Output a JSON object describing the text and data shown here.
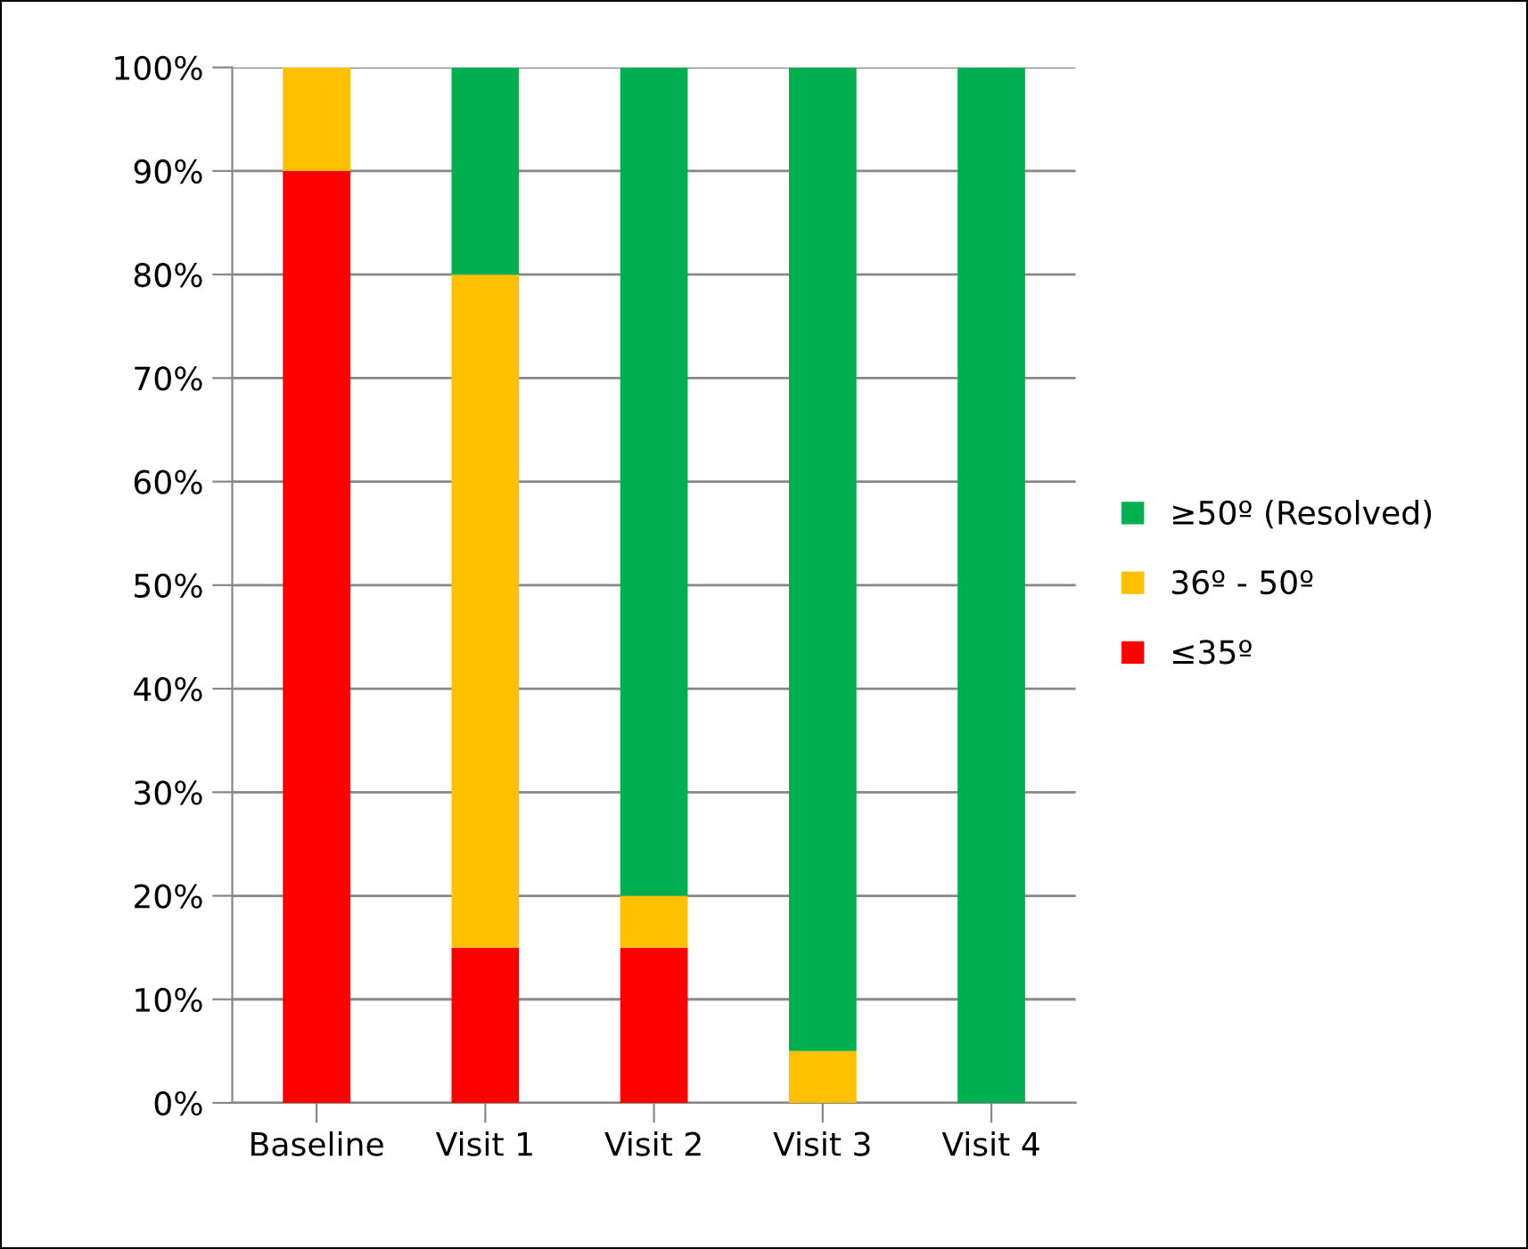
{
  "chart_data": {
    "type": "bar",
    "stacked": true,
    "categories": [
      "Baseline",
      "Visit 1",
      "Visit 2",
      "Visit 3",
      "Visit 4"
    ],
    "series": [
      {
        "name": "≤35º",
        "color": "#ff0000",
        "values": [
          90,
          15,
          15,
          0,
          0
        ]
      },
      {
        "name": "36º - 50º",
        "color": "#ffc000",
        "values": [
          10,
          65,
          5,
          5,
          0
        ]
      },
      {
        "name": "≥50º (Resolved)",
        "color": "#00b050",
        "values": [
          0,
          20,
          80,
          95,
          100
        ]
      }
    ],
    "ylim": [
      0,
      100
    ],
    "yticks": [
      {
        "value": 0,
        "label": "0%"
      },
      {
        "value": 10,
        "label": "10%"
      },
      {
        "value": 20,
        "label": "20%"
      },
      {
        "value": 30,
        "label": "30%"
      },
      {
        "value": 40,
        "label": "40%"
      },
      {
        "value": 50,
        "label": "50%"
      },
      {
        "value": 60,
        "label": "60%"
      },
      {
        "value": 70,
        "label": "70%"
      },
      {
        "value": 80,
        "label": "80%"
      },
      {
        "value": 90,
        "label": "90%"
      },
      {
        "value": 100,
        "label": "100%"
      }
    ],
    "grid": "y",
    "legend": "right"
  }
}
